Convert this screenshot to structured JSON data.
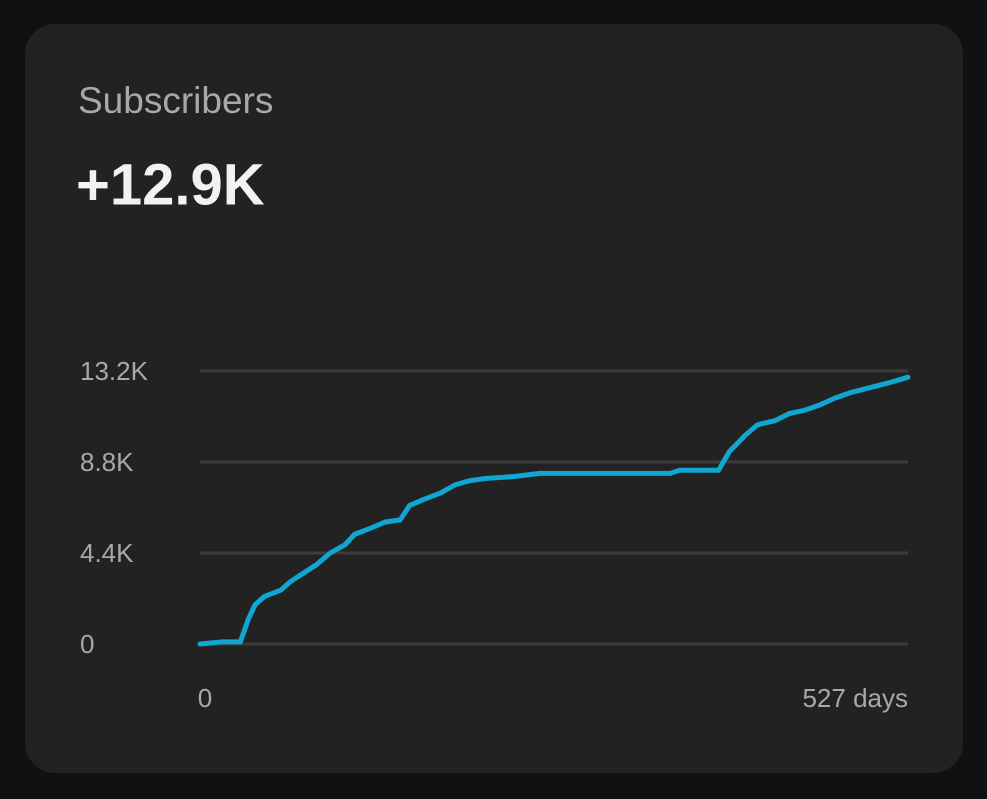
{
  "chart_data": {
    "type": "line",
    "title": "Subscribers",
    "subtitle": "+12.9K",
    "x": [
      0,
      16,
      30,
      36,
      41,
      48,
      60,
      67,
      74,
      86,
      97,
      108,
      115,
      127,
      138,
      149,
      156,
      167,
      179,
      190,
      201,
      212,
      234,
      253,
      350,
      357,
      386,
      394,
      406,
      415,
      428,
      439,
      450,
      461,
      473,
      484,
      499,
      514,
      527
    ],
    "series": [
      {
        "color": "#0fa6d2",
        "values": [
          0,
          100,
          100,
          1200,
          1900,
          2300,
          2600,
          3000,
          3300,
          3800,
          4400,
          4800,
          5300,
          5600,
          5900,
          6000,
          6700,
          7000,
          7300,
          7700,
          7900,
          8000,
          8100,
          8250,
          8250,
          8400,
          8400,
          9300,
          10100,
          10600,
          10800,
          11150,
          11300,
          11550,
          11900,
          12150,
          12400,
          12650,
          12900
        ]
      }
    ],
    "xlim": [
      0,
      527
    ],
    "xticks": [
      0,
      {
        "value": 527,
        "label": "527 days"
      }
    ],
    "ylim": [
      0,
      13200
    ],
    "yticks": [
      0,
      {
        "value": 4400,
        "label": "4.4K"
      },
      {
        "value": 8800,
        "label": "8.8K"
      },
      {
        "value": 13200,
        "label": "13.2K"
      }
    ],
    "grid": true
  }
}
